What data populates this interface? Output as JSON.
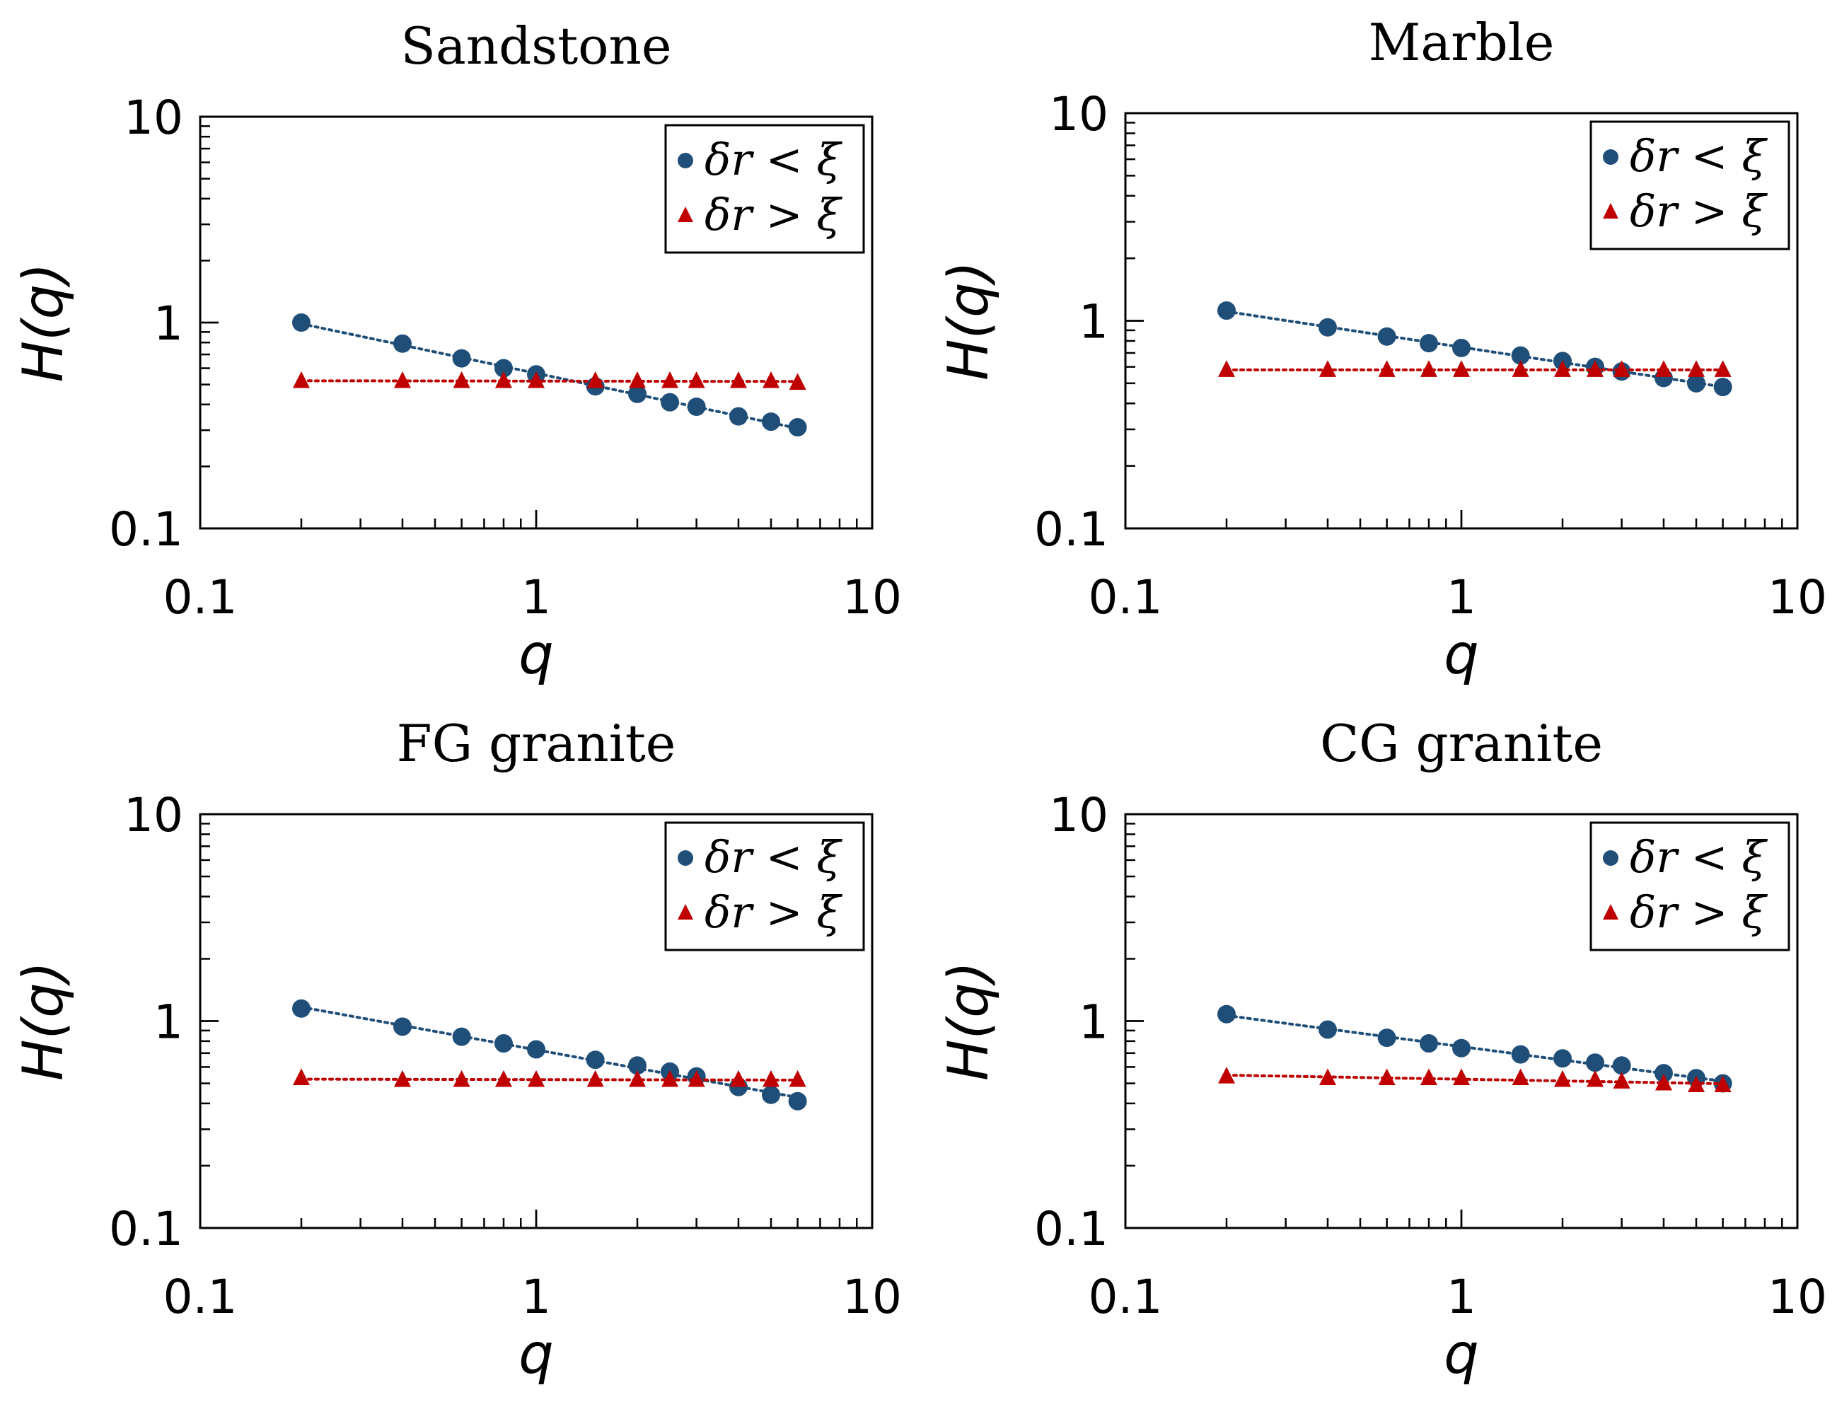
{
  "colors": {
    "series_below": "#1f4e79",
    "series_above": "#c00000",
    "axes": "#000000"
  },
  "chart_data": [
    {
      "type": "scatter",
      "title": "Sandstone",
      "xlabel": "q",
      "ylabel": "H(q)",
      "xscale": "log",
      "yscale": "log",
      "xlim": [
        0.1,
        10
      ],
      "ylim": [
        0.1,
        10
      ],
      "xticklabels": [
        "0.1",
        "1",
        "10"
      ],
      "yticklabels": [
        "0.1",
        "1",
        "10"
      ],
      "legend_position": "top-right",
      "x": [
        0.2,
        0.4,
        0.6,
        0.8,
        1.0,
        1.5,
        2.0,
        2.5,
        3.0,
        4.0,
        5.0,
        6.0
      ],
      "series": [
        {
          "name": "δr < ξ",
          "marker": "circle",
          "values": [
            1.0,
            0.79,
            0.67,
            0.6,
            0.56,
            0.49,
            0.45,
            0.41,
            0.39,
            0.35,
            0.33,
            0.31
          ]
        },
        {
          "name": "δr > ξ",
          "marker": "triangle",
          "values": [
            0.52,
            0.52,
            0.52,
            0.52,
            0.52,
            0.52,
            0.52,
            0.52,
            0.52,
            0.52,
            0.52,
            0.51
          ]
        }
      ]
    },
    {
      "type": "scatter",
      "title": "Marble",
      "xlabel": "q",
      "ylabel": "H(q)",
      "xscale": "log",
      "yscale": "log",
      "xlim": [
        0.1,
        10
      ],
      "ylim": [
        0.1,
        10
      ],
      "xticklabels": [
        "0.1",
        "1",
        "10"
      ],
      "yticklabels": [
        "0.1",
        "1",
        "10"
      ],
      "legend_position": "top-right",
      "x": [
        0.2,
        0.4,
        0.6,
        0.8,
        1.0,
        1.5,
        2.0,
        2.5,
        3.0,
        4.0,
        5.0,
        6.0
      ],
      "series": [
        {
          "name": "δr < ξ",
          "marker": "circle",
          "values": [
            1.12,
            0.93,
            0.84,
            0.78,
            0.74,
            0.68,
            0.64,
            0.6,
            0.57,
            0.53,
            0.5,
            0.48
          ]
        },
        {
          "name": "δr > ξ",
          "marker": "triangle",
          "values": [
            0.58,
            0.58,
            0.58,
            0.58,
            0.58,
            0.58,
            0.58,
            0.58,
            0.58,
            0.58,
            0.58,
            0.58
          ]
        }
      ]
    },
    {
      "type": "scatter",
      "title": "FG granite",
      "xlabel": "q",
      "ylabel": "H(q)",
      "xscale": "log",
      "yscale": "log",
      "xlim": [
        0.1,
        10
      ],
      "ylim": [
        0.1,
        10
      ],
      "xticklabels": [
        "0.1",
        "1",
        "10"
      ],
      "yticklabels": [
        "0.1",
        "1",
        "10"
      ],
      "legend_position": "top-right",
      "x": [
        0.2,
        0.4,
        0.6,
        0.8,
        1.0,
        1.5,
        2.0,
        2.5,
        3.0,
        4.0,
        5.0,
        6.0
      ],
      "series": [
        {
          "name": "δr < ξ",
          "marker": "circle",
          "values": [
            1.15,
            0.94,
            0.84,
            0.78,
            0.73,
            0.65,
            0.61,
            0.57,
            0.54,
            0.48,
            0.44,
            0.41
          ]
        },
        {
          "name": "δr > ξ",
          "marker": "triangle",
          "values": [
            0.53,
            0.52,
            0.52,
            0.52,
            0.52,
            0.52,
            0.52,
            0.52,
            0.52,
            0.52,
            0.52,
            0.52
          ]
        }
      ]
    },
    {
      "type": "scatter",
      "title": "CG granite",
      "xlabel": "q",
      "ylabel": "H(q)",
      "xscale": "log",
      "yscale": "log",
      "xlim": [
        0.1,
        10
      ],
      "ylim": [
        0.1,
        10
      ],
      "xticklabels": [
        "0.1",
        "1",
        "10"
      ],
      "yticklabels": [
        "0.1",
        "1",
        "10"
      ],
      "legend_position": "top-right",
      "x": [
        0.2,
        0.4,
        0.6,
        0.8,
        1.0,
        1.5,
        2.0,
        2.5,
        3.0,
        4.0,
        5.0,
        6.0
      ],
      "series": [
        {
          "name": "δr < ξ",
          "marker": "circle",
          "values": [
            1.08,
            0.91,
            0.83,
            0.78,
            0.74,
            0.69,
            0.66,
            0.63,
            0.61,
            0.56,
            0.53,
            0.5
          ]
        },
        {
          "name": "δr > ξ",
          "marker": "triangle",
          "values": [
            0.54,
            0.53,
            0.53,
            0.53,
            0.53,
            0.53,
            0.52,
            0.52,
            0.51,
            0.5,
            0.49,
            0.49
          ]
        }
      ]
    }
  ]
}
